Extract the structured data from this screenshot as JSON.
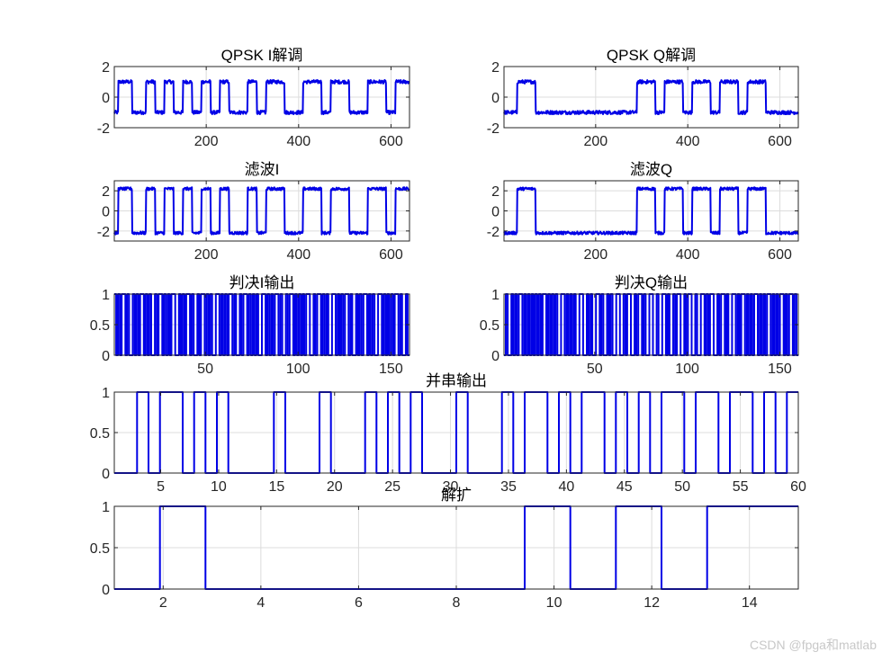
{
  "watermark": "CSDN @fpga和matlab",
  "colors": {
    "line": "#0000e6",
    "axis": "#262626",
    "grid": "#dcdcdc"
  },
  "chart_data": [
    {
      "type": "line",
      "title": "QPSK I解调",
      "xlim": [
        1,
        640
      ],
      "ylim": [
        -2,
        2
      ],
      "xticks": [
        200,
        400,
        600
      ],
      "yticks": [
        -2,
        0,
        2
      ],
      "grid": true,
      "levels": [
        -1,
        1
      ],
      "noise": 0.12,
      "x_step": 1,
      "series": [
        {
          "segments": [
            [
              1,
              10,
              -1
            ],
            [
              10,
              40,
              1
            ],
            [
              40,
              70,
              -1
            ],
            [
              70,
              90,
              1
            ],
            [
              90,
              110,
              -1
            ],
            [
              110,
              130,
              1
            ],
            [
              130,
              150,
              -1
            ],
            [
              150,
              170,
              1
            ],
            [
              170,
              190,
              -1
            ],
            [
              190,
              210,
              1
            ],
            [
              210,
              230,
              -1
            ],
            [
              230,
              250,
              1
            ],
            [
              250,
              290,
              -1
            ],
            [
              290,
              310,
              1
            ],
            [
              310,
              330,
              -1
            ],
            [
              330,
              370,
              1
            ],
            [
              370,
              410,
              -1
            ],
            [
              410,
              450,
              1
            ],
            [
              450,
              470,
              -1
            ],
            [
              470,
              510,
              1
            ],
            [
              510,
              550,
              -1
            ],
            [
              550,
              590,
              1
            ],
            [
              590,
              610,
              -1
            ],
            [
              610,
              640,
              1
            ]
          ]
        }
      ]
    },
    {
      "type": "line",
      "title": "QPSK Q解调",
      "xlim": [
        1,
        640
      ],
      "ylim": [
        -2,
        2
      ],
      "xticks": [
        200,
        400,
        600
      ],
      "yticks": [
        -2,
        0,
        2
      ],
      "grid": true,
      "levels": [
        -1,
        1
      ],
      "noise": 0.12,
      "x_step": 1,
      "series": [
        {
          "segments": [
            [
              1,
              30,
              -1
            ],
            [
              30,
              70,
              1
            ],
            [
              70,
              290,
              -1
            ],
            [
              290,
              330,
              1
            ],
            [
              330,
              350,
              -1
            ],
            [
              350,
              390,
              1
            ],
            [
              390,
              410,
              -1
            ],
            [
              410,
              450,
              1
            ],
            [
              450,
              470,
              -1
            ],
            [
              470,
              510,
              1
            ],
            [
              510,
              530,
              -1
            ],
            [
              530,
              570,
              1
            ],
            [
              570,
              640,
              -1
            ]
          ]
        }
      ]
    },
    {
      "type": "line",
      "title": "滤波I",
      "xlim": [
        1,
        640
      ],
      "ylim": [
        -3,
        3
      ],
      "xticks": [
        200,
        400,
        600
      ],
      "yticks": [
        -2,
        0,
        2
      ],
      "grid": true,
      "levels": [
        -2.2,
        2.2
      ],
      "noise": 0.15,
      "x_step": 1,
      "series": [
        {
          "segments": [
            [
              1,
              10,
              -1
            ],
            [
              10,
              40,
              1
            ],
            [
              40,
              70,
              -1
            ],
            [
              70,
              90,
              1
            ],
            [
              90,
              110,
              -1
            ],
            [
              110,
              130,
              1
            ],
            [
              130,
              150,
              -1
            ],
            [
              150,
              170,
              1
            ],
            [
              170,
              190,
              -1
            ],
            [
              190,
              210,
              1
            ],
            [
              210,
              230,
              -1
            ],
            [
              230,
              250,
              1
            ],
            [
              250,
              290,
              -1
            ],
            [
              290,
              310,
              1
            ],
            [
              310,
              330,
              -1
            ],
            [
              330,
              370,
              1
            ],
            [
              370,
              410,
              -1
            ],
            [
              410,
              450,
              1
            ],
            [
              450,
              470,
              -1
            ],
            [
              470,
              510,
              1
            ],
            [
              510,
              550,
              -1
            ],
            [
              550,
              590,
              1
            ],
            [
              590,
              610,
              -1
            ],
            [
              610,
              640,
              1
            ]
          ]
        }
      ]
    },
    {
      "type": "line",
      "title": "滤波Q",
      "xlim": [
        1,
        640
      ],
      "ylim": [
        -3,
        3
      ],
      "xticks": [
        200,
        400,
        600
      ],
      "yticks": [
        -2,
        0,
        2
      ],
      "grid": true,
      "levels": [
        -2.2,
        2.2
      ],
      "noise": 0.15,
      "x_step": 1,
      "series": [
        {
          "segments": [
            [
              1,
              30,
              -1
            ],
            [
              30,
              70,
              1
            ],
            [
              70,
              290,
              -1
            ],
            [
              290,
              330,
              1
            ],
            [
              330,
              350,
              -1
            ],
            [
              350,
              390,
              1
            ],
            [
              390,
              410,
              -1
            ],
            [
              410,
              450,
              1
            ],
            [
              450,
              470,
              -1
            ],
            [
              470,
              510,
              1
            ],
            [
              510,
              530,
              -1
            ],
            [
              530,
              570,
              1
            ],
            [
              570,
              640,
              -1
            ]
          ]
        }
      ]
    },
    {
      "type": "line",
      "title": "判决I输出",
      "xlim": [
        1,
        160
      ],
      "ylim": [
        0,
        1
      ],
      "xticks": [
        50,
        100,
        150
      ],
      "yticks": [
        0,
        0.5,
        1
      ],
      "grid": true,
      "step": true,
      "series": [
        {
          "values": [
            1,
            0,
            1,
            0,
            1,
            1,
            0,
            1,
            0,
            0,
            1,
            0,
            1,
            0,
            1,
            1,
            0,
            1,
            0,
            1,
            0,
            0,
            1,
            0,
            1,
            1,
            0,
            1,
            0,
            1,
            0,
            1,
            1,
            0,
            0,
            1,
            0,
            1,
            0,
            1,
            1,
            0,
            1,
            0,
            0,
            1,
            0,
            1,
            1,
            0,
            1,
            0,
            1,
            0,
            0,
            1,
            1,
            0,
            1,
            0,
            1,
            0,
            1,
            1,
            0,
            1,
            0,
            0,
            1,
            0,
            1,
            1,
            0,
            1,
            0,
            1,
            0,
            1,
            0,
            0,
            1,
            1,
            0,
            1,
            0,
            1,
            0,
            1,
            1,
            0,
            1,
            0,
            0,
            1,
            0,
            1,
            1,
            0,
            1,
            0,
            1,
            0,
            1,
            0,
            1,
            1,
            0,
            0,
            1,
            0,
            1,
            1,
            0,
            1,
            0,
            1,
            0,
            0,
            1,
            1,
            0,
            1,
            0,
            1,
            0,
            1,
            1,
            0,
            1,
            0,
            0,
            1,
            0,
            1,
            0,
            1,
            1,
            0,
            1,
            0,
            1,
            0,
            0,
            1,
            1,
            0,
            1,
            0,
            1,
            0,
            1,
            0,
            1,
            1,
            0,
            1,
            0,
            0,
            1,
            0
          ]
        }
      ]
    },
    {
      "type": "line",
      "title": "判决Q输出",
      "xlim": [
        1,
        160
      ],
      "ylim": [
        0,
        1
      ],
      "xticks": [
        50,
        100,
        150
      ],
      "yticks": [
        0,
        0.5,
        1
      ],
      "grid": true,
      "step": true,
      "series": [
        {
          "values": [
            0,
            1,
            0,
            0,
            1,
            0,
            1,
            0,
            1,
            1,
            0,
            1,
            0,
            1,
            0,
            1,
            0,
            1,
            0,
            1,
            0,
            1,
            1,
            0,
            1,
            0,
            1,
            0,
            1,
            0,
            0,
            1,
            1,
            0,
            1,
            0,
            1,
            0,
            1,
            0,
            0,
            1,
            1,
            0,
            0,
            1,
            0,
            1,
            0,
            0,
            1,
            1,
            0,
            1,
            0,
            0,
            1,
            0,
            1,
            0,
            0,
            1,
            1,
            0,
            0,
            1,
            0,
            1,
            1,
            0,
            0,
            1,
            0,
            1,
            1,
            0,
            1,
            0,
            0,
            1,
            1,
            0,
            0,
            1,
            0,
            0,
            1,
            1,
            0,
            1,
            0,
            0,
            1,
            0,
            1,
            1,
            0,
            0,
            1,
            0,
            1,
            1,
            0,
            0,
            1,
            0,
            0,
            1,
            1,
            0,
            1,
            0,
            1,
            1,
            0,
            0,
            1,
            0,
            1,
            1,
            0,
            1,
            0,
            0,
            1,
            1,
            0,
            1,
            0,
            1,
            1,
            0,
            1,
            0,
            1,
            0,
            1,
            1,
            0,
            1,
            0,
            1,
            0,
            1,
            1,
            0,
            1,
            0,
            1,
            0,
            1,
            1,
            0,
            1,
            0,
            1,
            1,
            0,
            1,
            0
          ]
        }
      ]
    },
    {
      "type": "line",
      "title": "并串输出",
      "xlim": [
        1,
        60
      ],
      "ylim": [
        0,
        1
      ],
      "xticks": [
        5,
        10,
        15,
        20,
        25,
        30,
        35,
        40,
        45,
        50,
        55,
        60
      ],
      "yticks": [
        0,
        0.5,
        1
      ],
      "grid": true,
      "step": true,
      "series": [
        {
          "values": [
            0,
            0,
            1,
            0,
            1,
            1,
            0,
            1,
            0,
            1,
            0,
            0,
            0,
            0,
            1,
            0,
            0,
            0,
            1,
            0,
            0,
            0,
            1,
            0,
            1,
            0,
            1,
            0,
            0,
            0,
            1,
            0,
            0,
            0,
            1,
            0,
            1,
            1,
            0,
            1,
            0,
            1,
            1,
            0,
            1,
            0,
            1,
            0,
            1,
            1,
            0,
            1,
            1,
            0,
            1,
            1,
            0,
            1,
            0,
            1
          ]
        }
      ]
    },
    {
      "type": "line",
      "title": "解扩",
      "xlim": [
        1,
        15
      ],
      "ylim": [
        0,
        1
      ],
      "xticks": [
        2,
        4,
        6,
        8,
        10,
        12,
        14
      ],
      "yticks": [
        0,
        0.5,
        1
      ],
      "grid": true,
      "step": true,
      "series": [
        {
          "values": [
            0,
            1,
            0,
            0,
            0,
            0,
            0,
            0,
            0,
            1,
            0,
            1,
            0,
            1,
            1
          ]
        }
      ]
    }
  ]
}
